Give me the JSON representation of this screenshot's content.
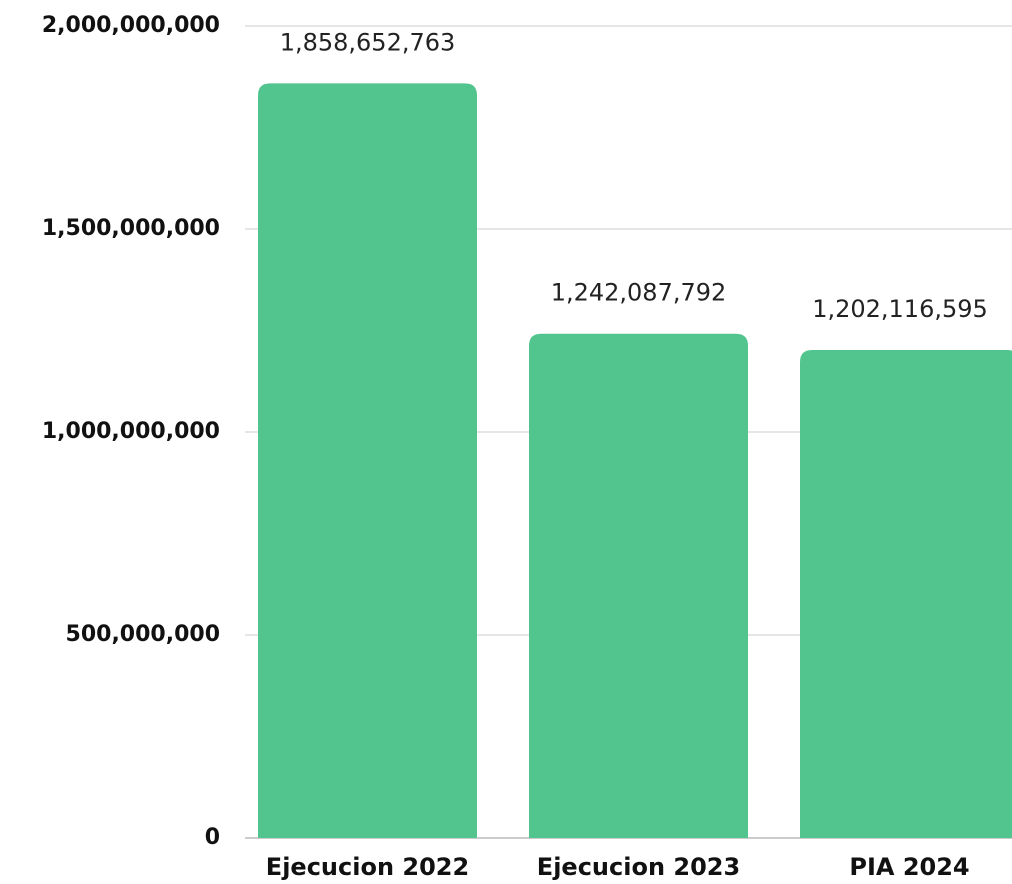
{
  "chart_data": {
    "type": "bar",
    "categories": [
      "Ejecucion 2022",
      "Ejecucion 2023",
      "PIA 2024"
    ],
    "values": [
      1858652763,
      1242087792,
      1202116595
    ],
    "value_labels": [
      "1,858,652,763",
      "1,242,087,792",
      "1,202,116,595"
    ],
    "color": "#52c58e",
    "ylim": [
      0,
      2000000000
    ],
    "yticks": [
      0,
      {
        "value": 500000000,
        "label": "500,000,000"
      },
      {
        "value": 1000000000,
        "label": "1,000,000,000"
      },
      {
        "value": 1500000000,
        "label": "1,500,000,000"
      },
      {
        "value": 2000000000,
        "label": "2,000,000,000"
      }
    ],
    "grid": true
  }
}
